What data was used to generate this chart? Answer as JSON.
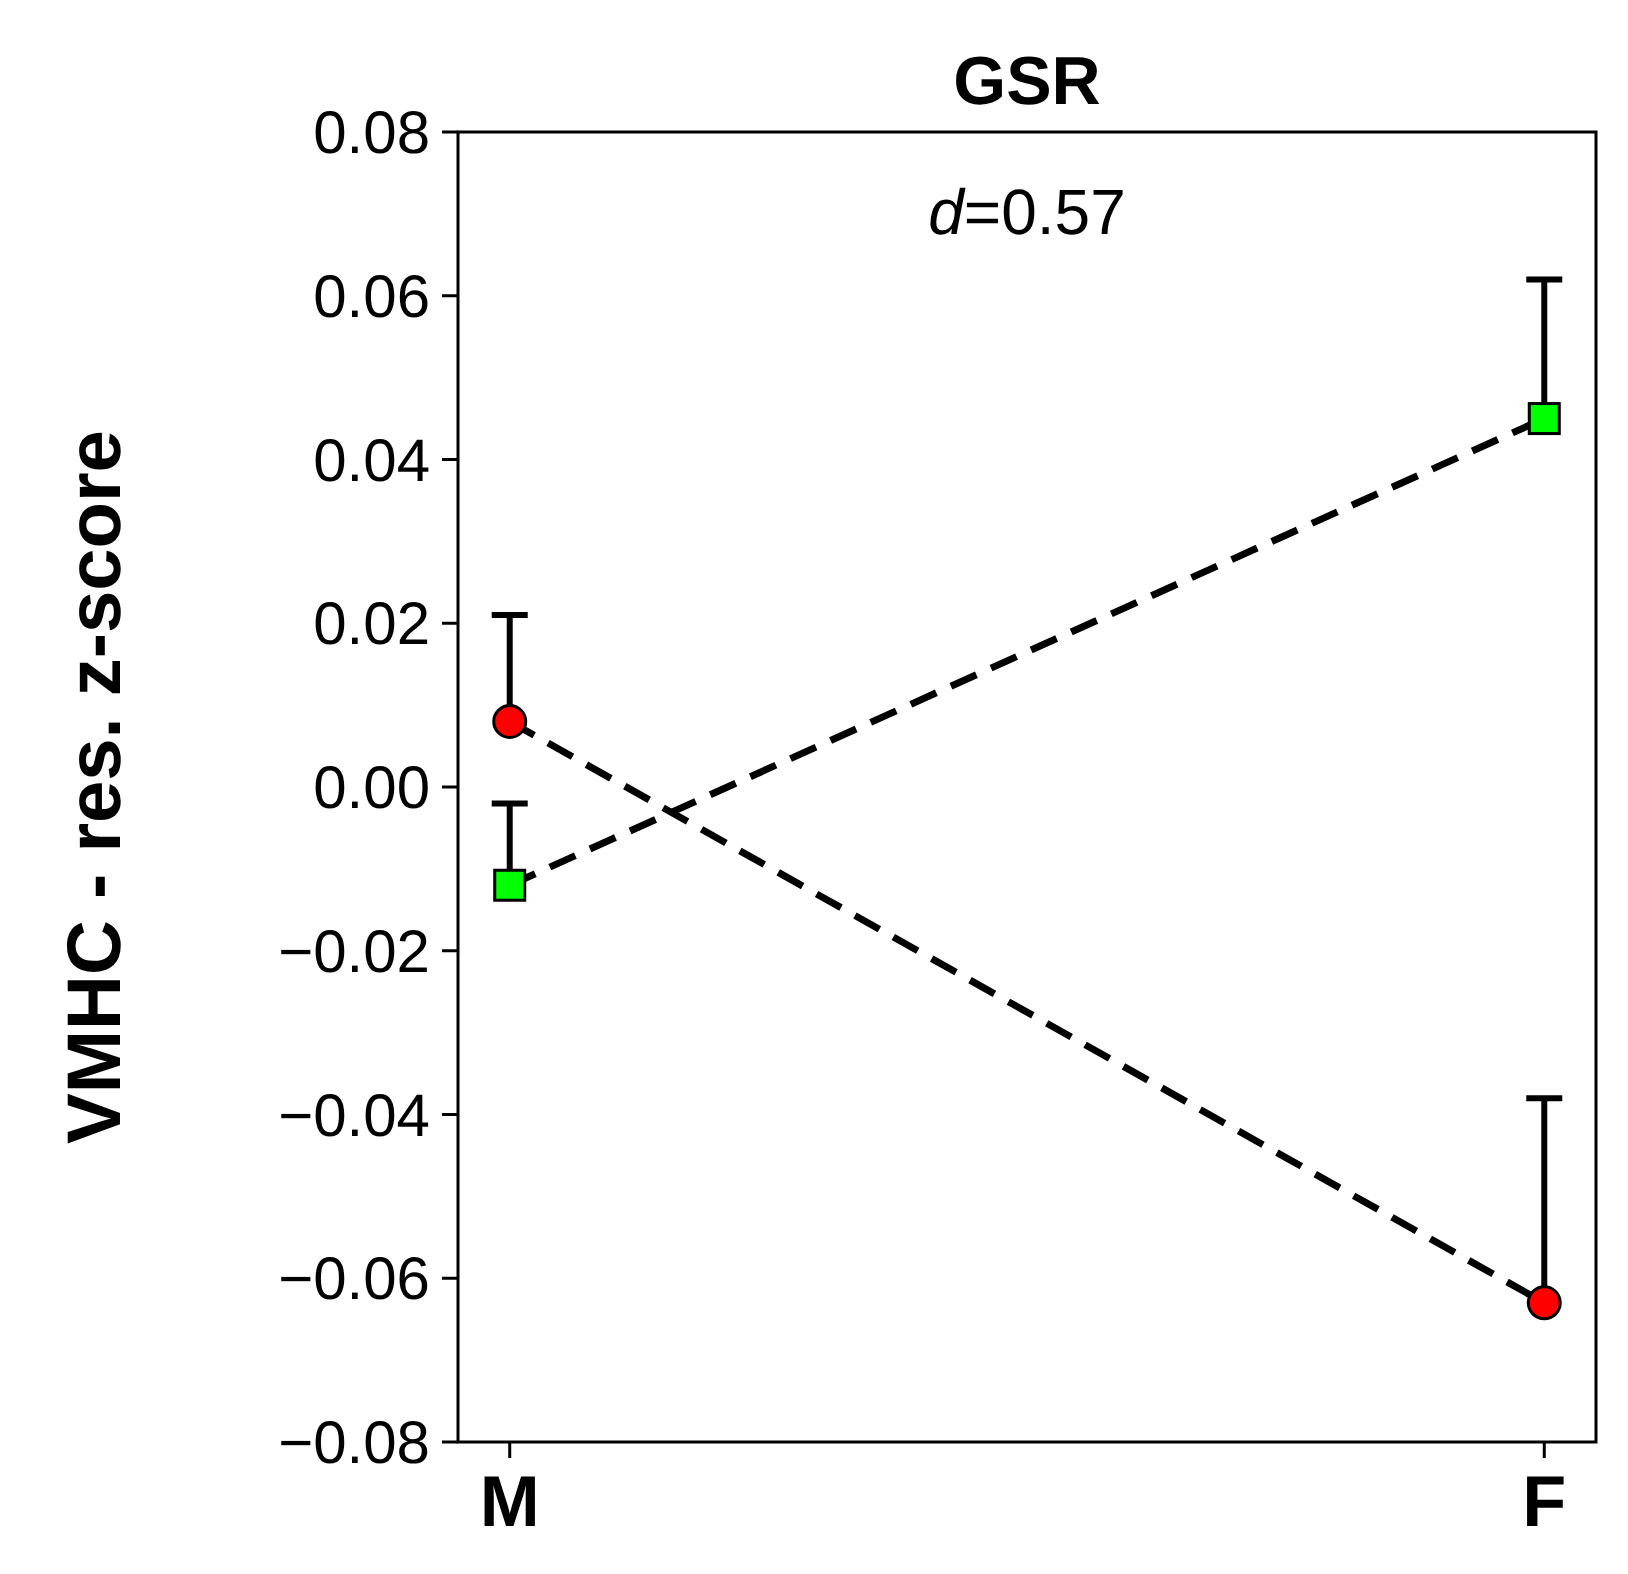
{
  "chart_data": {
    "type": "line",
    "title": "GSR",
    "ylabel": "VMHC - res. z-score",
    "categories": [
      "M",
      "F"
    ],
    "series": [
      {
        "color": "#ff0000",
        "marker": "circle",
        "values": [
          0.008,
          -0.063
        ],
        "errors": [
          [
            0.008,
            0.021
          ],
          [
            -0.063,
            -0.038
          ]
        ]
      },
      {
        "color": "#00ff00",
        "marker": "square",
        "values": [
          -0.012,
          0.045
        ],
        "errors": [
          [
            -0.012,
            -0.002
          ],
          [
            0.045,
            0.062
          ]
        ]
      }
    ],
    "line_style": "dashed",
    "ylim": [
      -0.08,
      0.08
    ],
    "yticks": [
      -0.08,
      -0.06,
      -0.04,
      -0.02,
      {
        "value": 0,
        "label": "0.00"
      },
      0.02,
      0.04,
      0.06,
      0.08
    ],
    "annotations": [
      "d=0.57"
    ],
    "grid": false
  }
}
